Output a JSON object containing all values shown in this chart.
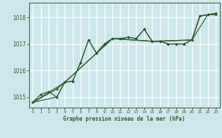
{
  "title": "Graphe pression niveau de la mer (hPa)",
  "bg_color": "#cce8ec",
  "grid_color": "#ffffff",
  "line_color": "#2d5a27",
  "xlim": [
    -0.5,
    23.5
  ],
  "ylim": [
    1014.6,
    1018.55
  ],
  "yticks": [
    1015,
    1016,
    1017,
    1018
  ],
  "xticks": [
    0,
    1,
    2,
    3,
    4,
    5,
    6,
    7,
    8,
    9,
    10,
    11,
    12,
    13,
    14,
    15,
    16,
    17,
    18,
    19,
    20,
    21,
    22,
    23
  ],
  "line1_x": [
    0,
    1,
    2,
    3,
    4,
    5,
    6,
    7,
    8,
    9,
    10,
    11,
    12,
    13,
    14,
    15,
    16,
    17,
    18,
    19,
    20,
    21,
    22,
    23
  ],
  "line1_y": [
    1014.8,
    1015.1,
    1015.2,
    1015.0,
    1015.55,
    1015.6,
    1016.3,
    1017.15,
    1016.65,
    1017.0,
    1017.2,
    1017.2,
    1017.25,
    1017.2,
    1017.55,
    1017.1,
    1017.1,
    1017.0,
    1017.0,
    1017.0,
    1017.15,
    1018.05,
    1018.1,
    1018.1
  ],
  "line2_x": [
    0,
    3,
    4,
    5,
    6,
    7,
    8,
    9,
    10,
    11,
    12,
    13,
    14,
    15,
    16,
    17,
    18,
    19,
    20,
    21,
    22,
    23
  ],
  "line2_y": [
    1014.8,
    1015.3,
    1015.55,
    1015.6,
    1016.3,
    1017.15,
    1016.65,
    1017.0,
    1017.2,
    1017.2,
    1017.25,
    1017.2,
    1017.55,
    1017.1,
    1017.1,
    1017.0,
    1017.0,
    1017.0,
    1017.15,
    1018.05,
    1018.1,
    1018.15
  ],
  "line3_x": [
    0,
    3,
    4,
    10,
    15,
    16,
    20,
    21,
    22,
    23
  ],
  "line3_y": [
    1014.8,
    1015.0,
    1015.55,
    1017.2,
    1017.1,
    1017.1,
    1017.15,
    1018.05,
    1018.1,
    1018.1
  ],
  "line4_x": [
    0,
    4,
    10,
    15,
    20,
    22,
    23
  ],
  "line4_y": [
    1014.8,
    1015.55,
    1017.2,
    1017.1,
    1017.15,
    1018.1,
    1018.15
  ]
}
